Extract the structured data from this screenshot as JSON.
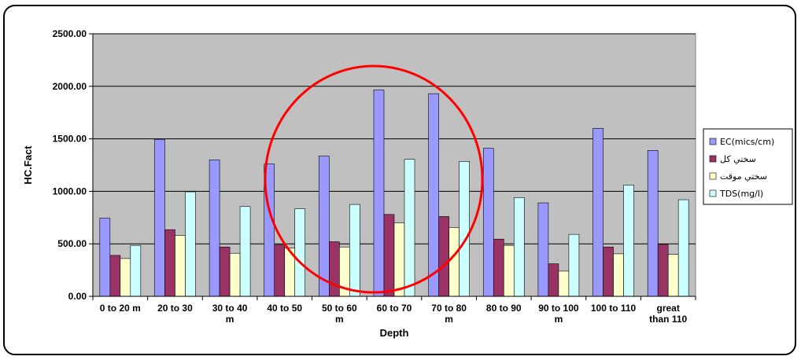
{
  "chart_data": {
    "type": "bar",
    "title": "",
    "xlabel": "Depth",
    "ylabel": "HC.Fact",
    "ylim": [
      0,
      2500
    ],
    "yticks": [
      "0.00",
      "500.00",
      "1000.00",
      "1500.00",
      "2000.00",
      "2500.00"
    ],
    "grid": true,
    "legend_position": "right",
    "categories": [
      [
        "0 to 20 m"
      ],
      [
        "20 to 30"
      ],
      [
        "30 to 40",
        "m"
      ],
      [
        "40 to 50"
      ],
      [
        "50 to 60",
        "m"
      ],
      [
        "60 to 70"
      ],
      [
        "70 to 80",
        "m"
      ],
      [
        "80 to 90"
      ],
      [
        "90 to 100",
        "m"
      ],
      [
        "100 to 110"
      ],
      [
        "great",
        "than 110"
      ]
    ],
    "series": [
      {
        "name": "EC(mics/cm)",
        "color": "#9999ff",
        "values": [
          745,
          1495,
          1300,
          1260,
          1335,
          1965,
          1930,
          1410,
          890,
          1600,
          1390
        ]
      },
      {
        "name": "سختي کل",
        "color": "#993366",
        "values": [
          390,
          635,
          470,
          490,
          520,
          780,
          760,
          545,
          310,
          470,
          495
        ]
      },
      {
        "name": "سختي موقت",
        "color": "#ffffcc",
        "values": [
          360,
          580,
          410,
          460,
          470,
          700,
          655,
          485,
          240,
          405,
          400
        ]
      },
      {
        "name": "TDS(mg/l)",
        "color": "#ccffff",
        "values": [
          485,
          995,
          855,
          835,
          875,
          1305,
          1285,
          940,
          590,
          1060,
          920
        ]
      }
    ],
    "annotation": {
      "shape": "circle",
      "color": "#ff0000"
    }
  }
}
